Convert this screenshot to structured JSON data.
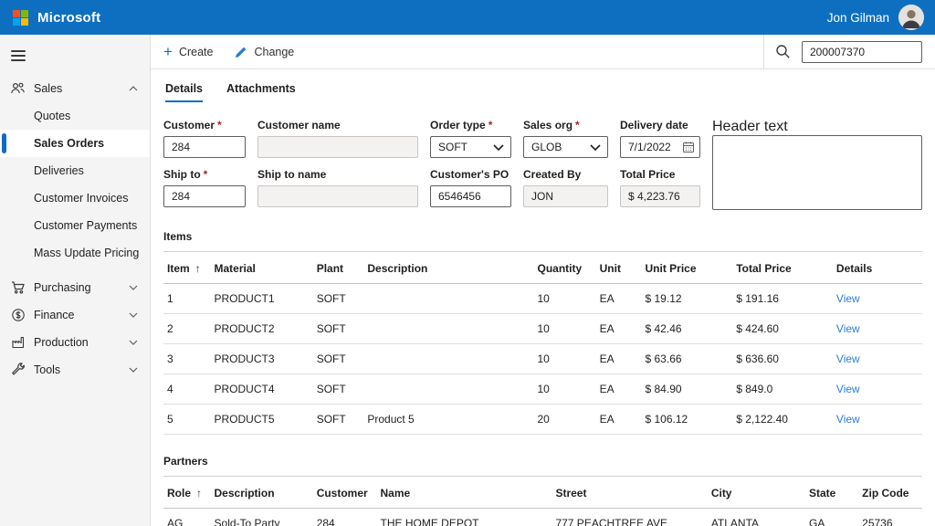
{
  "colors": {
    "topbar": "#0E6FC1",
    "accent": "#0F6CBD",
    "link": "#2B7CD3"
  },
  "topbar": {
    "brand": "Microsoft",
    "user": "Jon Gilman"
  },
  "toolbar": {
    "create_label": "Create",
    "change_label": "Change",
    "search_value": "200007370"
  },
  "sidebar": {
    "sales_group": "Sales",
    "sales_items": [
      "Quotes",
      "Sales Orders",
      "Deliveries",
      "Customer Invoices",
      "Customer Payments",
      "Mass Update Pricing"
    ],
    "groups": [
      "Purchasing",
      "Finance",
      "Production",
      "Tools"
    ]
  },
  "tabs": {
    "details": "Details",
    "attachments": "Attachments"
  },
  "ui": {
    "required_marker": "*"
  },
  "form": {
    "customer": {
      "label": "Customer",
      "value": "284"
    },
    "customer_name": {
      "label": "Customer name",
      "value": ""
    },
    "order_type": {
      "label": "Order type",
      "value": "SOFT"
    },
    "sales_org": {
      "label": "Sales org",
      "value": "GLOB"
    },
    "delivery_date": {
      "label": "Delivery date",
      "value": "7/1/2022"
    },
    "header_text": {
      "label": "Header text",
      "value": ""
    },
    "ship_to": {
      "label": "Ship to",
      "value": "284"
    },
    "ship_to_name": {
      "label": "Ship to name",
      "value": ""
    },
    "customers_po": {
      "label": "Customer's PO",
      "value": "6546456"
    },
    "created_by": {
      "label": "Created By",
      "value": "JON"
    },
    "total_price": {
      "label": "Total Price",
      "value": "$ 4,223.76"
    }
  },
  "items": {
    "title": "Items",
    "columns": [
      {
        "label": "Item",
        "sorted": true,
        "w": "6.2%"
      },
      {
        "label": "Material",
        "w": "13.5%"
      },
      {
        "label": "Plant",
        "w": "6.7%"
      },
      {
        "label": "Description",
        "w": "22.4%"
      },
      {
        "label": "Quantity",
        "w": "8.2%"
      },
      {
        "label": "Unit",
        "w": "6%"
      },
      {
        "label": "Unit Price",
        "w": "12%"
      },
      {
        "label": "Total Price",
        "w": "13.2%"
      },
      {
        "label": "Details",
        "type": "link",
        "w": "11.8%"
      }
    ],
    "rows": [
      [
        "1",
        "PRODUCT1",
        "SOFT",
        "",
        "10",
        "EA",
        "$ 19.12",
        "$ 191.16",
        "View"
      ],
      [
        "2",
        "PRODUCT2",
        "SOFT",
        "",
        "10",
        "EA",
        "$ 42.46",
        "$ 424.60",
        "View"
      ],
      [
        "3",
        "PRODUCT3",
        "SOFT",
        "",
        "10",
        "EA",
        "$ 63.66",
        "$ 636.60",
        "View"
      ],
      [
        "4",
        "PRODUCT4",
        "SOFT",
        "",
        "10",
        "EA",
        "$ 84.90",
        "$ 849.0",
        "View"
      ],
      [
        "5",
        "PRODUCT5",
        "SOFT",
        "Product 5",
        "20",
        "EA",
        "$ 106.12",
        "$ 2,122.40",
        "View"
      ]
    ]
  },
  "partners": {
    "title": "Partners",
    "columns": [
      {
        "label": "Role",
        "sorted": true,
        "w": "6.2%"
      },
      {
        "label": "Description",
        "w": "13.5%"
      },
      {
        "label": "Customer",
        "w": "8.4%"
      },
      {
        "label": "Name",
        "w": "23.1%"
      },
      {
        "label": "Street",
        "w": "20.5%"
      },
      {
        "label": "City",
        "w": "12.9%"
      },
      {
        "label": "State",
        "w": "7%"
      },
      {
        "label": "Zip Code",
        "w": "8.4%"
      }
    ],
    "rows": [
      [
        "AG",
        "Sold-To Party",
        "284",
        "THE HOME DEPOT",
        "777 PEACHTREE AVE",
        "ATLANTA",
        "GA",
        "25736"
      ]
    ]
  }
}
